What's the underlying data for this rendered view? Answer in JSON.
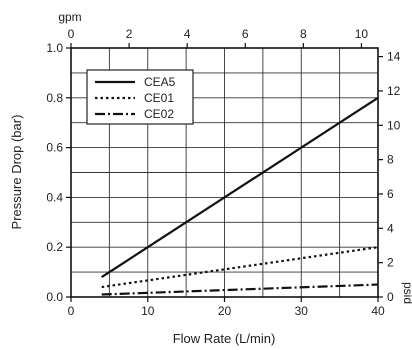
{
  "chart_data": {
    "type": "line",
    "xlabel": "Flow Rate (L/min)",
    "ylabel": "Pressure Drop (bar)",
    "x_top_label": "gpm",
    "y_right_label": "psid",
    "xlim": [
      0,
      40
    ],
    "ylim": [
      0,
      1.0
    ],
    "x_ticks": [
      "0",
      "10",
      "20",
      "30",
      "40"
    ],
    "y_ticks": [
      "0.0",
      "0.2",
      "0.4",
      "0.6",
      "0.8",
      "1.0"
    ],
    "x_top_ticks": [
      "0",
      "2",
      "4",
      "6",
      "8",
      "10"
    ],
    "y_right_ticks": [
      "0",
      "2",
      "4",
      "6",
      "8",
      "10",
      "12",
      "14"
    ],
    "x_top_range": [
      0,
      10.57
    ],
    "y_right_range": [
      0,
      14.5
    ],
    "grid": true,
    "legend_position": "top-left",
    "series": [
      {
        "name": "CEA5",
        "style": "solid",
        "x": [
          4,
          40
        ],
        "y": [
          0.08,
          0.8
        ]
      },
      {
        "name": "CE01",
        "style": "dotted",
        "x": [
          4,
          40
        ],
        "y": [
          0.04,
          0.2
        ]
      },
      {
        "name": "CE02",
        "style": "dash-dot",
        "x": [
          4,
          40
        ],
        "y": [
          0.01,
          0.05
        ]
      }
    ]
  }
}
